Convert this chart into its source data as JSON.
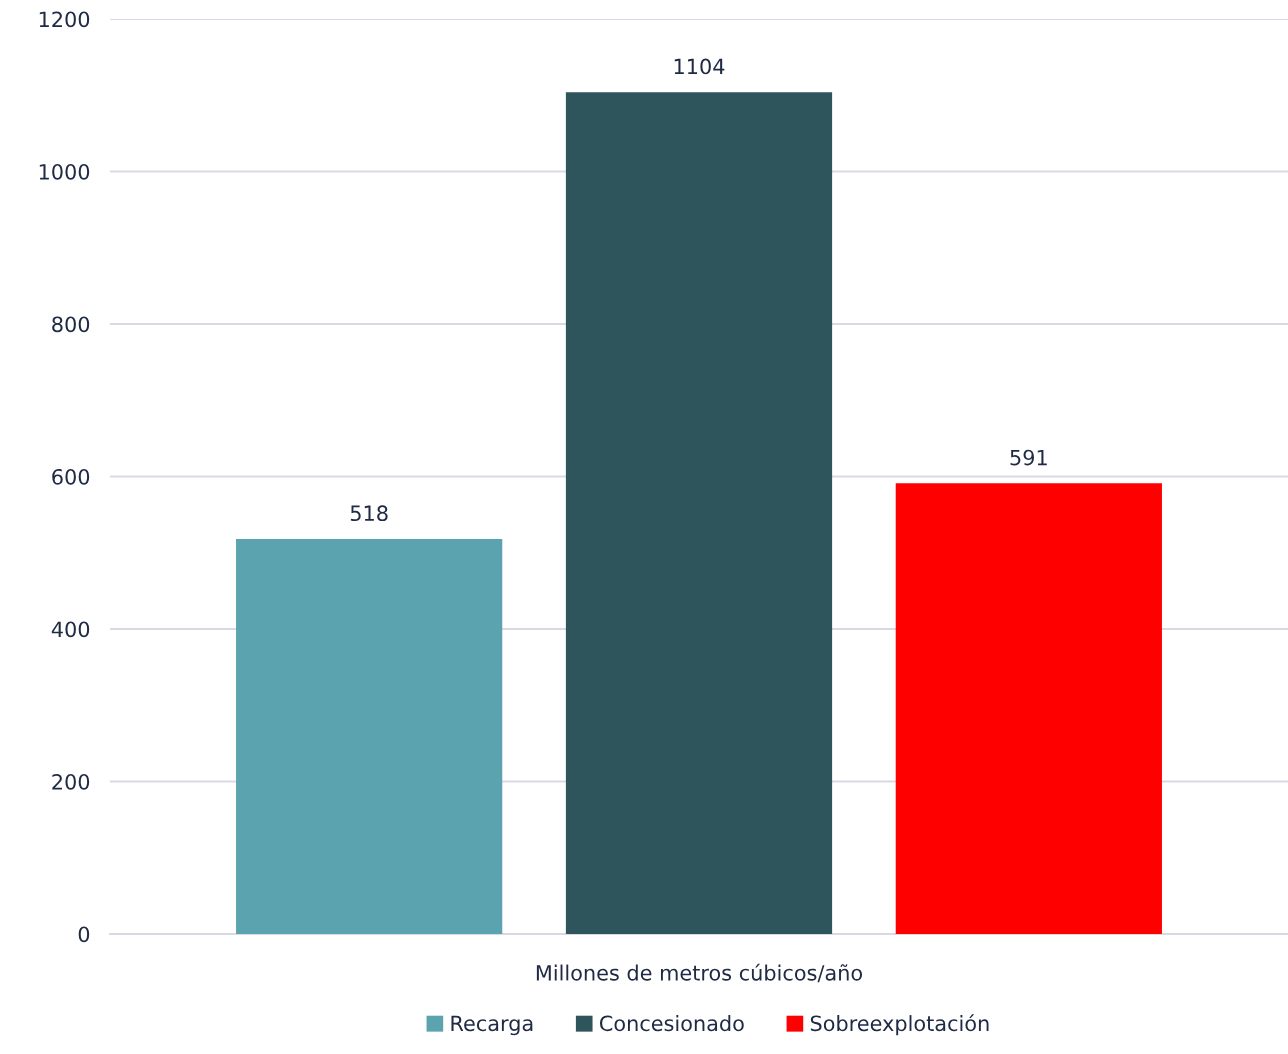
{
  "chart_data": {
    "type": "bar",
    "categories": [
      "Millones de metros cúbicos/año"
    ],
    "series": [
      {
        "name": "Recarga",
        "color": "#5ba3ae",
        "values": [
          518
        ]
      },
      {
        "name": "Concesionado",
        "color": "#2d555b",
        "values": [
          1104
        ]
      },
      {
        "name": "Sobreexplotación",
        "color": "#ff0000",
        "values": [
          591
        ]
      }
    ],
    "ylim": [
      0,
      1200
    ],
    "yticks": [
      0,
      200,
      400,
      600,
      800,
      1000,
      1200
    ],
    "grid": "y",
    "legend": "bottom",
    "data_labels": true
  }
}
